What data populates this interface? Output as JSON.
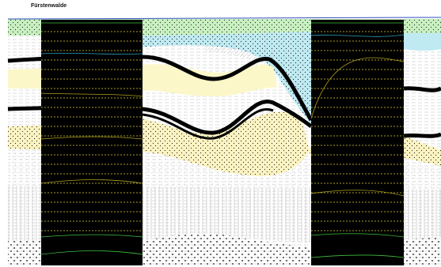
{
  "title": "Fürstenwalde"
}
